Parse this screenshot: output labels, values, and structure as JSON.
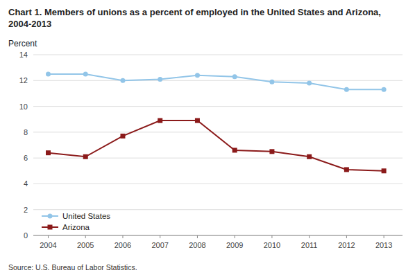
{
  "chart_data": {
    "type": "line",
    "title": "Chart 1. Members of unions as a percent of employed in the United States and Arizona, 2004-2013",
    "y_label": "Percent",
    "annotations": [
      "Source: U.S. Bureau of Labor Statistics."
    ],
    "x": [
      2004,
      2005,
      2006,
      2007,
      2008,
      2009,
      2010,
      2011,
      2012,
      2013
    ],
    "series": [
      {
        "name": "United States",
        "color": "#92C5E8",
        "marker": "circle",
        "values": [
          12.5,
          12.5,
          12.0,
          12.1,
          12.4,
          12.3,
          11.9,
          11.8,
          11.3,
          11.3
        ]
      },
      {
        "name": "Arizona",
        "color": "#8B1A1A",
        "marker": "square",
        "values": [
          6.4,
          6.1,
          7.7,
          8.9,
          8.9,
          6.6,
          6.5,
          6.1,
          5.1,
          5.0
        ]
      }
    ],
    "xlim": [
      2003.6,
      2013.5
    ],
    "xticks": [
      2004,
      2005,
      2006,
      2007,
      2008,
      2009,
      2010,
      2011,
      2012,
      2013
    ],
    "ylim": [
      0,
      14
    ],
    "yticks": [
      0,
      2,
      4,
      6,
      8,
      10,
      12,
      14
    ],
    "grid": true,
    "legend": "lower left"
  }
}
